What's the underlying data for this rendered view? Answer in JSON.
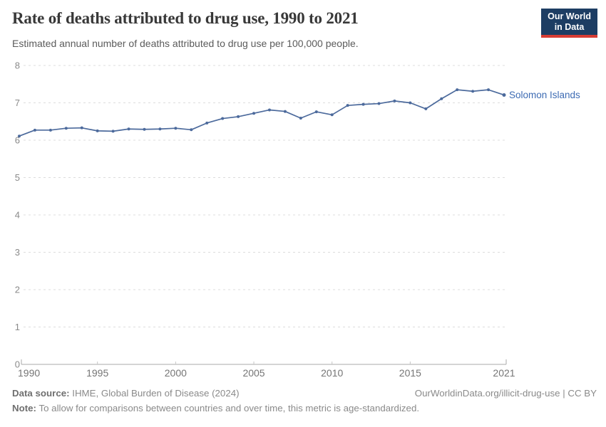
{
  "header": {
    "title": "Rate of deaths attributed to drug use, 1990 to 2021",
    "subtitle": "Estimated annual number of deaths attributed to drug use per 100,000 people.",
    "logo": {
      "line1": "Our World",
      "line2": "in Data",
      "bg": "#1d3d63",
      "accent": "#d73c34"
    }
  },
  "chart_data": {
    "type": "line",
    "title": "Rate of deaths attributed to drug use, 1990 to 2021",
    "xlabel": "",
    "ylabel": "Estimated annual deaths attributed to drug use per 100,000 people",
    "xlim": [
      1990,
      2021
    ],
    "ylim": [
      0,
      8
    ],
    "x_ticks": [
      1990,
      1995,
      2000,
      2005,
      2010,
      2015,
      2021
    ],
    "y_ticks": [
      0,
      1,
      2,
      3,
      4,
      5,
      6,
      7,
      8
    ],
    "grid": "horizontal-dashed",
    "legend_position": "end-of-line-label",
    "series": [
      {
        "name": "Solomon Islands",
        "color": "#4c6a9c",
        "x": [
          1990,
          1991,
          1992,
          1993,
          1994,
          1995,
          1996,
          1997,
          1998,
          1999,
          2000,
          2001,
          2002,
          2003,
          2004,
          2005,
          2006,
          2007,
          2008,
          2009,
          2010,
          2011,
          2012,
          2013,
          2014,
          2015,
          2016,
          2017,
          2018,
          2019,
          2020,
          2021
        ],
        "values": [
          6.11,
          6.27,
          6.27,
          6.32,
          6.33,
          6.25,
          6.24,
          6.3,
          6.29,
          6.3,
          6.32,
          6.28,
          6.46,
          6.58,
          6.63,
          6.72,
          6.81,
          6.77,
          6.59,
          6.76,
          6.68,
          6.93,
          6.96,
          6.98,
          7.05,
          7.0,
          6.84,
          7.11,
          7.35,
          7.31,
          7.35,
          7.21
        ]
      }
    ],
    "colors": {
      "line": "#4c6a9c",
      "end_label": "#3d6bb3",
      "gridline": "#dcdcdc",
      "axis": "#a9a9a9",
      "y_tick_text": "#8a8a8a",
      "x_tick_text": "#757575"
    }
  },
  "footer": {
    "datasource_label": "Data source:",
    "datasource_text": " IHME, Global Burden of Disease (2024)",
    "link": "OurWorldinData.org/illicit-drug-use | CC BY",
    "note_label": "Note:",
    "note_text": " To allow for comparisons between countries and over time, this metric is age-standardized."
  }
}
